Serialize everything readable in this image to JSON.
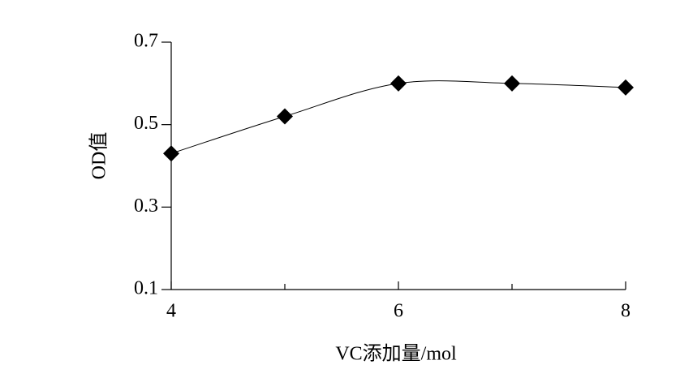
{
  "chart_data": {
    "type": "line",
    "x_label": "VC添加量/mol",
    "y_label": "OD值",
    "x": [
      4,
      5,
      6,
      7,
      8
    ],
    "series": [
      {
        "values": [
          0.43,
          0.52,
          0.6,
          0.6,
          0.59
        ],
        "color": "#000000"
      }
    ],
    "xlim": [
      4,
      8
    ],
    "xticks": [
      4,
      6,
      8
    ],
    "xminor_ticks": [
      5,
      7
    ],
    "ylim": [
      0.1,
      0.7
    ],
    "yticks": [
      0.1,
      0.3,
      0.5,
      0.7
    ],
    "marker": "diamond",
    "smooth": true
  }
}
